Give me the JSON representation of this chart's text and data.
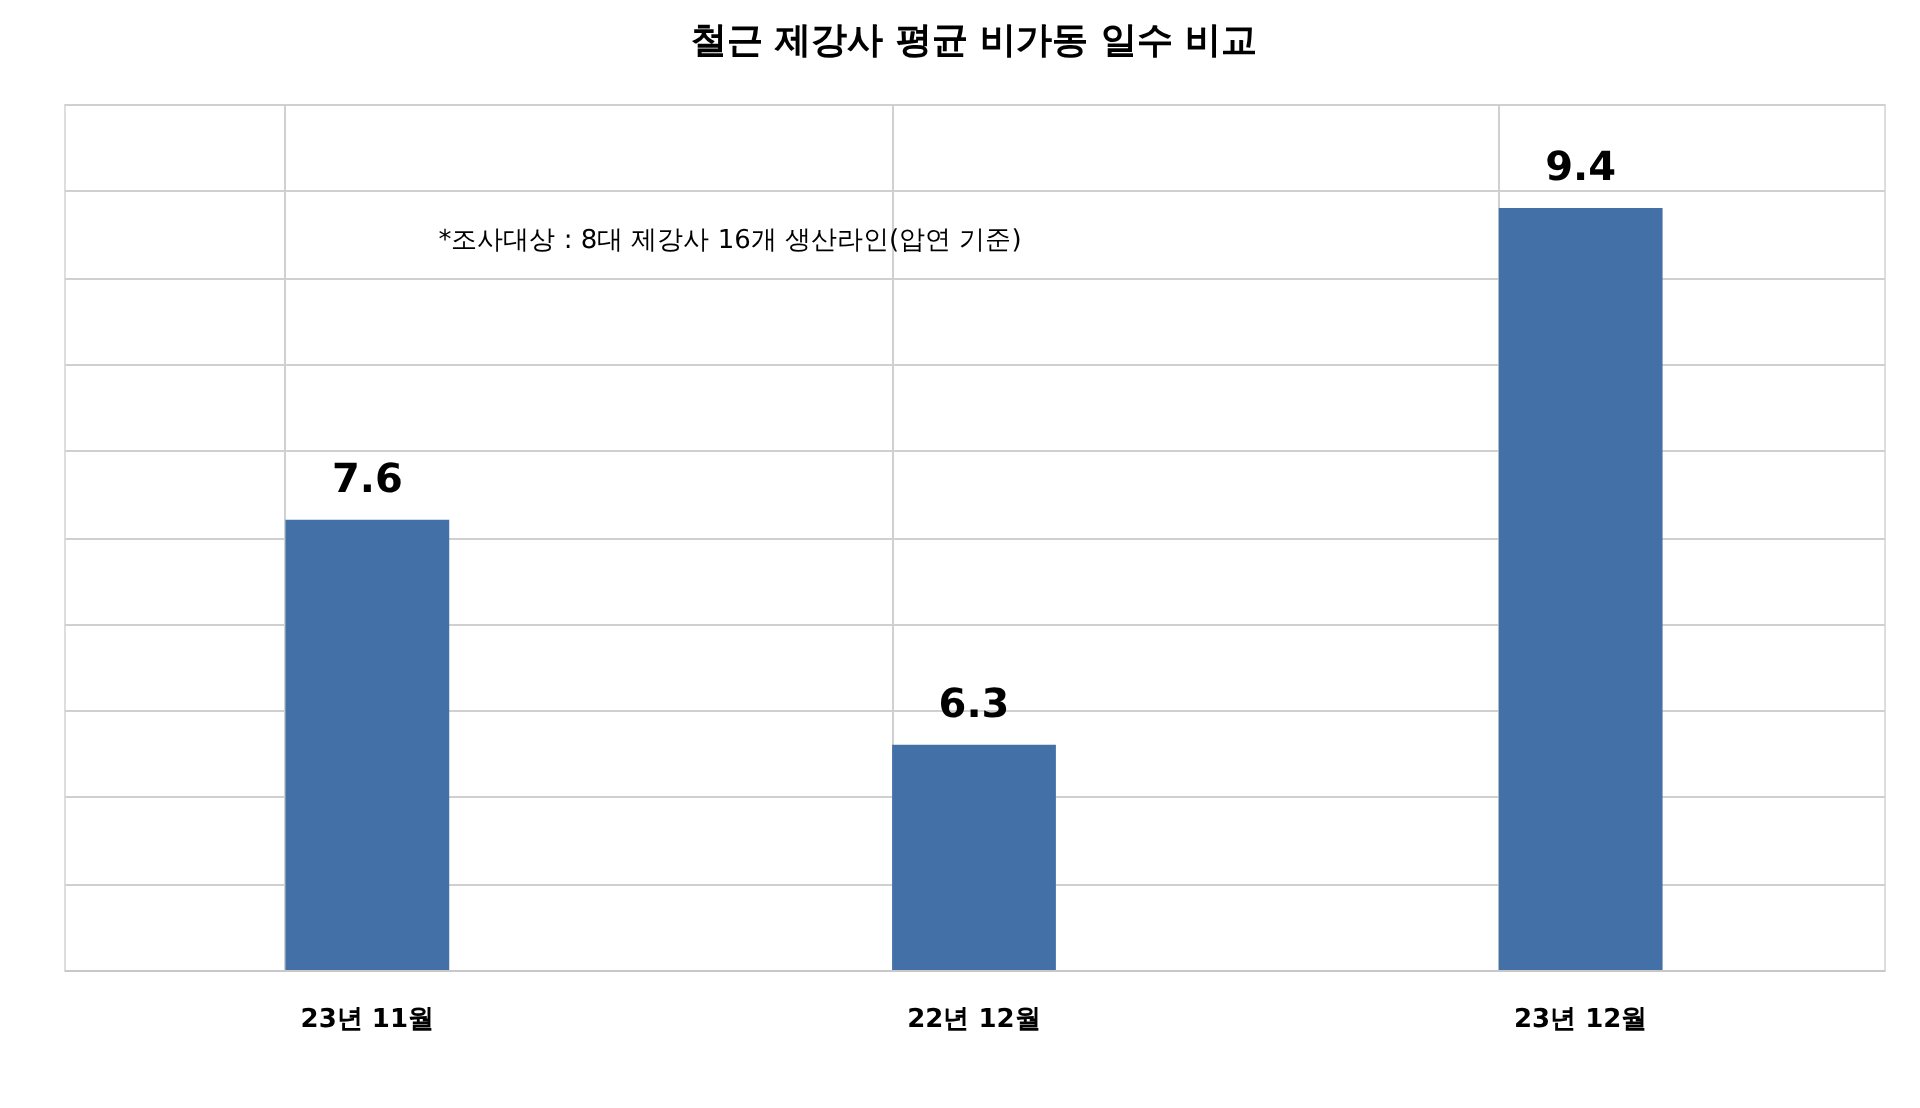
{
  "chart_data": {
    "type": "bar",
    "title": "철근 제강사 평균 비가동 일수 비교",
    "categories": [
      "23년 11월",
      "22년 12월",
      "23년 12월"
    ],
    "values": [
      7.6,
      6.3,
      9.4
    ],
    "color": "#4470a8",
    "ylim": [
      5,
      10
    ],
    "yticks": [
      {
        "value": 5,
        "label": null
      },
      {
        "value": 5.5,
        "label": null
      },
      {
        "value": 6,
        "label": null
      },
      {
        "value": 6.5,
        "label": null
      },
      {
        "value": 7,
        "label": null
      },
      {
        "value": 7.5,
        "label": null
      },
      {
        "value": 8,
        "label": null
      },
      {
        "value": 8.5,
        "label": null
      },
      {
        "value": 9,
        "label": null
      },
      {
        "value": 9.5,
        "label": null
      },
      {
        "value": 10,
        "label": null
      }
    ],
    "tick_labels": "x",
    "grid": true,
    "data_labels": true,
    "annotations": [
      "*조사대상 : 8대 제강사 16개 생산라인(압연 기준)"
    ]
  }
}
